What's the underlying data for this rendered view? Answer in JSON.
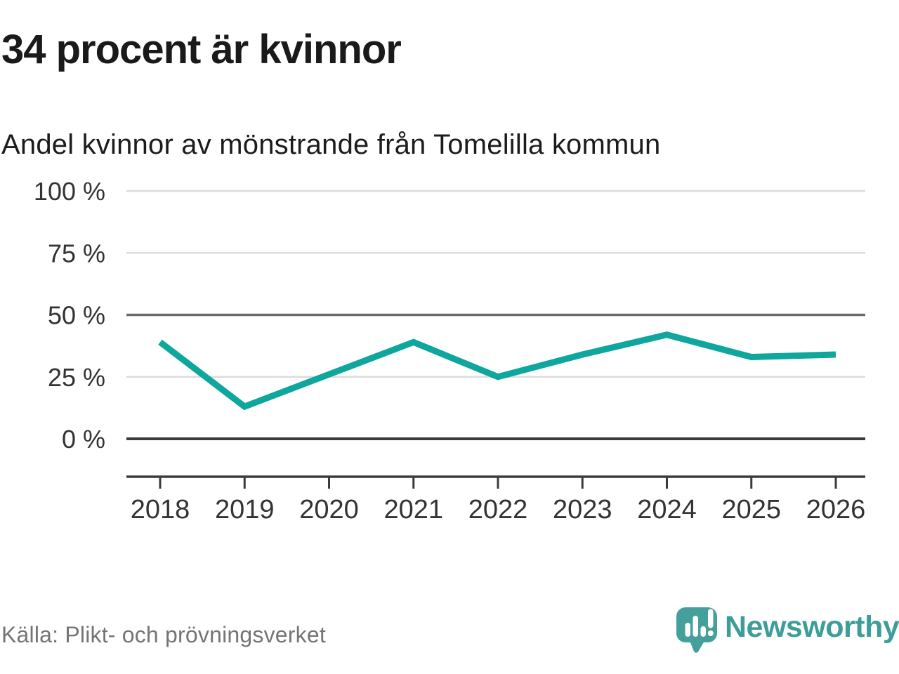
{
  "header": {
    "title": "34 procent är kvinnor",
    "subtitle": "Andel kvinnor av mönstrande från Tomelilla kommun"
  },
  "chart_data": {
    "type": "line",
    "title": "34 procent är kvinnor",
    "subtitle": "Andel kvinnor av mönstrande från Tomelilla kommun",
    "x": [
      2018,
      2019,
      2020,
      2021,
      2022,
      2023,
      2024,
      2025,
      2026
    ],
    "series": [
      {
        "name": "Andel kvinnor av mönstrande",
        "unit": "%",
        "values": [
          39,
          13,
          26,
          39,
          25,
          34,
          42,
          33,
          34
        ]
      }
    ],
    "xlabel": "",
    "ylabel": "",
    "ylim": [
      0,
      100
    ],
    "y_ticks": [
      0,
      25,
      50,
      75,
      100
    ],
    "y_tick_format": "{v} %",
    "grid": true,
    "emphasized_gridlines": [
      50
    ],
    "baseline_at_zero": true,
    "legend": false,
    "markers": false,
    "line_color": "#0ea69d"
  },
  "footer": {
    "source": "Källa: Plikt- och prövningsverket",
    "brand": "Newsworthy"
  },
  "colors": {
    "accent": "#0ea69d",
    "grid_light": "#dcdcdc",
    "grid_emphasis": "#6a6a6e",
    "axis": "#3b3b3b",
    "axis_text": "#333333",
    "title_text": "#1a1a1a",
    "source_text": "#757575",
    "logo_bubble": "#45a09b",
    "logo_text": "#3d9e99",
    "logo_glyph": "#ffffff"
  }
}
